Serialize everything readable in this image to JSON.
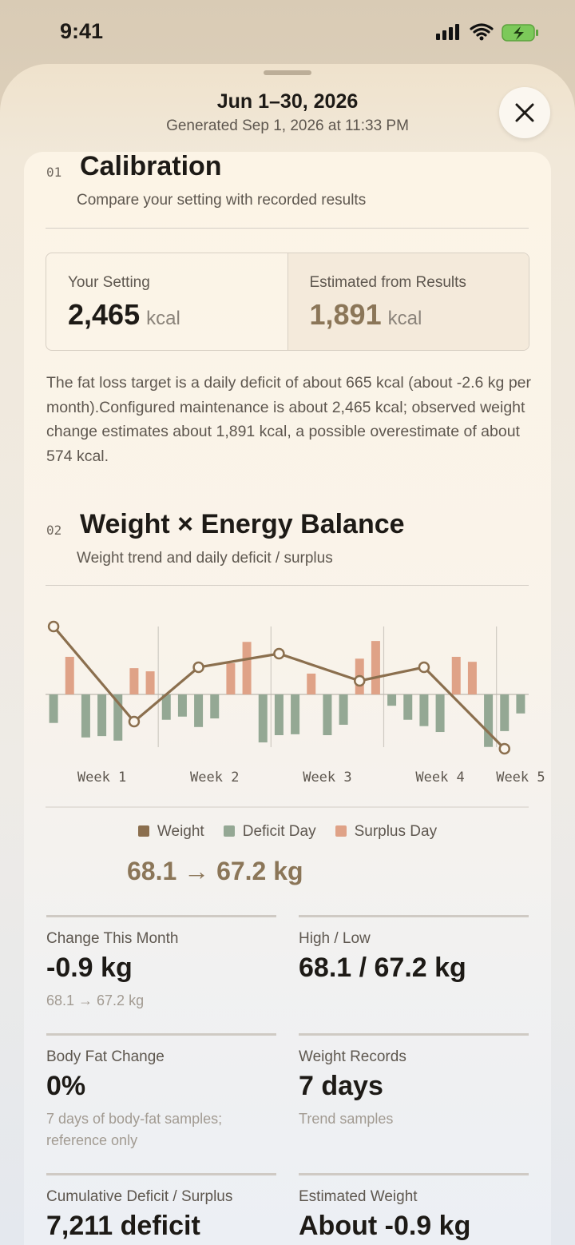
{
  "status_bar": {
    "time": "9:41"
  },
  "header": {
    "title": "Jun 1–30, 2026",
    "subtitle": "Generated Sep 1, 2026 at 11:33 PM"
  },
  "calibration": {
    "number": "01",
    "title": "Calibration",
    "subtitle": "Compare your setting with recorded results",
    "cards": [
      {
        "label": "Your Setting",
        "value": "2,465",
        "unit": "kcal"
      },
      {
        "label": "Estimated from Results",
        "value": "1,891",
        "unit": "kcal"
      }
    ],
    "note": "The fat loss target is a daily deficit of about 665 kcal (about -2.6 kg per month).Configured maintenance is about 2,465 kcal; observed weight change estimates about 1,891 kcal, a possible overestimate of about 574 kcal."
  },
  "balance": {
    "number": "02",
    "title": "Weight × Energy Balance",
    "subtitle": "Weight trend and daily deficit / surplus",
    "summary": "68.1 → 67.2 kg"
  },
  "chart_data": {
    "type": "bar",
    "categories": [
      null,
      null,
      null,
      "Week 1",
      null,
      null,
      null,
      null,
      null,
      null,
      "Week 2",
      null,
      null,
      null,
      null,
      null,
      null,
      "Week 3",
      null,
      null,
      null,
      null,
      null,
      null,
      "Week 4",
      null,
      null,
      null,
      null,
      "Week 5"
    ],
    "series": [
      {
        "name": "Weight",
        "type": "line",
        "axis": "y2",
        "color": "#8b6f4e",
        "x": [
          1,
          6,
          10,
          15,
          20,
          24,
          29
        ],
        "values": [
          68.1,
          67.4,
          67.8,
          67.9,
          67.7,
          67.8,
          67.2
        ]
      },
      {
        "name": "Deficit Day",
        "color": "#94a894",
        "values": [
          -630,
          null,
          -950,
          -920,
          -1020,
          null,
          null,
          -560,
          -490,
          -720,
          -530,
          null,
          null,
          -1060,
          -900,
          -880,
          null,
          -900,
          -670,
          null,
          null,
          -250,
          -560,
          -700,
          -830,
          null,
          null,
          -1160,
          -810,
          -420
        ]
      },
      {
        "name": "Surplus Day",
        "color": "#dfa287",
        "values": [
          null,
          830,
          null,
          null,
          null,
          580,
          510,
          null,
          null,
          null,
          null,
          690,
          1160,
          null,
          null,
          null,
          460,
          null,
          null,
          790,
          1180,
          null,
          null,
          null,
          null,
          830,
          720,
          null,
          null,
          null
        ]
      }
    ],
    "ylim": [
      -1800,
      1800
    ],
    "y2lim": [
      67.0,
      68.2
    ]
  },
  "stats": [
    {
      "label": "Change This Month",
      "value": "-0.9 kg",
      "note": "68.1 → 67.2 kg"
    },
    {
      "label": "High / Low",
      "value": "68.1 / 67.2 kg"
    },
    {
      "label": "Body Fat Change",
      "value": "0%",
      "note": "7 days of body-fat samples; reference only"
    },
    {
      "label": "Weight Records",
      "value": "7 days",
      "note": "Trend samples"
    },
    {
      "label": "Cumulative Deficit / Surplus",
      "value": "7,211 deficit"
    },
    {
      "label": "Estimated Weight",
      "value": "About -0.9 kg"
    }
  ]
}
